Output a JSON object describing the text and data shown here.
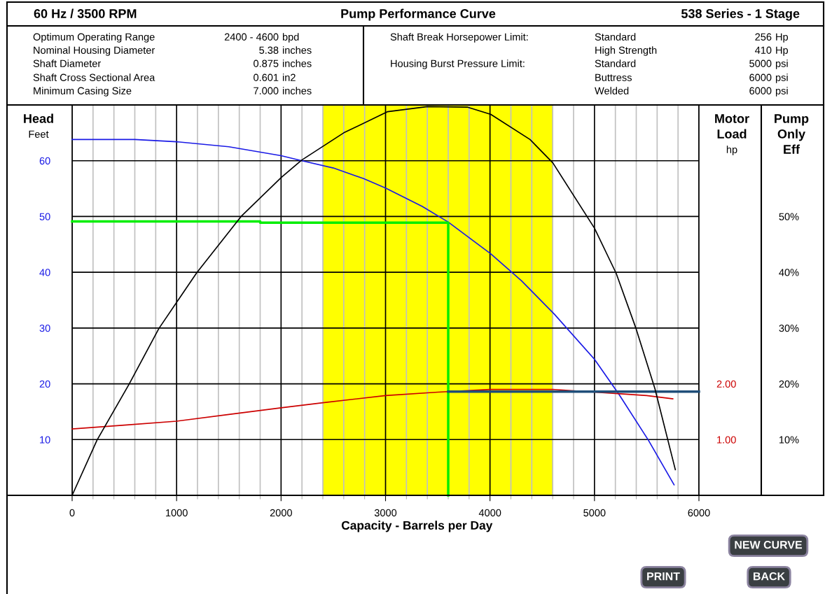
{
  "chart_data": {
    "type": "line",
    "title": "Pump Performance Curve",
    "subtitle": "538 Series - 1 Stage",
    "xlabel": "Capacity - Barrels per Day",
    "ylabel": "Head\nFeet",
    "y2label": "Motor\nLoad\nhp",
    "y3label": "Pump\nOnly\nEff",
    "annotations": [
      "60 Hz / 3500 RPM",
      "Optimum Operating Range",
      "Nominal Housing Diameter",
      "Shaft Diameter",
      "Shaft Cross Sectional Area",
      "Minimum Casing Size",
      "2400 - 4600",
      "5.38",
      "0.875",
      "0.601",
      "7.000",
      "bpd",
      "inches",
      "inches",
      "in2",
      "inches",
      "Shaft Break Horsepower Limit:",
      "Housing Burst Pressure Limit:",
      "Standard",
      "High Strength",
      "Standard",
      "Buttress",
      "Welded",
      "256",
      "410",
      "5000",
      "6000",
      "6000",
      "Hp",
      "Hp",
      "psi",
      "psi",
      "psi",
      "NEW CURVE",
      "PRINT",
      "BACK"
    ],
    "xlim": [
      0,
      6000
    ],
    "xticks": [
      0,
      {
        "value": 200,
        "label": null
      },
      {
        "value": 400,
        "label": null
      },
      {
        "value": 600,
        "label": null
      },
      {
        "value": 800,
        "label": null
      },
      1000,
      {
        "value": 1200,
        "label": null
      },
      {
        "value": 1400,
        "label": null
      },
      {
        "value": 1600,
        "label": null
      },
      {
        "value": 1800,
        "label": null
      },
      2000,
      {
        "value": 2200,
        "label": null
      },
      {
        "value": 2400,
        "label": null
      },
      {
        "value": 2600,
        "label": null
      },
      {
        "value": 2800,
        "label": null
      },
      3000,
      {
        "value": 3200,
        "label": null
      },
      {
        "value": 3400,
        "label": null
      },
      {
        "value": 3600,
        "label": null
      },
      {
        "value": 3800,
        "label": null
      },
      4000,
      {
        "value": 4200,
        "label": null
      },
      {
        "value": 4400,
        "label": null
      },
      {
        "value": 4600,
        "label": null
      },
      {
        "value": 4800,
        "label": null
      },
      5000,
      {
        "value": 5200,
        "label": null
      },
      {
        "value": 5400,
        "label": null
      },
      {
        "value": 5600,
        "label": null
      },
      {
        "value": 5800,
        "label": null
      },
      6000
    ],
    "ylim": [
      0,
      70
    ],
    "yticks": [
      10,
      20,
      30,
      40,
      50,
      60
    ],
    "y2lim": [
      0,
      7
    ],
    "y2ticks": [
      {
        "value": 1,
        "label": "1.00"
      },
      {
        "value": 2,
        "label": "2.00"
      }
    ],
    "y3lim": [
      0,
      70
    ],
    "y3ticks": [
      {
        "value": 10,
        "label": "10%"
      },
      {
        "value": 20,
        "label": "20%"
      },
      {
        "value": 30,
        "label": "30%"
      },
      {
        "value": 40,
        "label": "40%"
      },
      {
        "value": 50,
        "label": "50%"
      }
    ],
    "grid": true,
    "line_style": "solid",
    "marker": "none",
    "bands": [
      {
        "axis": "x",
        "from": 2400,
        "to": 4600,
        "color": "#ffff00"
      }
    ],
    "series": [
      {
        "color": "#1a1ae6",
        "x": [
          0,
          600,
          1000,
          1500,
          2000,
          2200,
          2500,
          2790,
          3000,
          3351,
          3600,
          4008,
          4300,
          4615,
          5000,
          5235,
          5516,
          5762
        ],
        "values": [
          63.8,
          63.8,
          63.4,
          62.5,
          60.9,
          60,
          58.7,
          56.8,
          55.1,
          51.8,
          49,
          43.3,
          38.5,
          32.5,
          24.4,
          18.1,
          9.9,
          1.9
        ]
      },
      {
        "color": "#000000",
        "axis": "y3",
        "x": [
          0,
          238,
          547,
          830,
          1192,
          1617,
          2002,
          2197,
          2600,
          3021,
          3400,
          3787,
          4008,
          4383,
          4602,
          5000,
          5208,
          5398,
          5579,
          5774
        ],
        "values": [
          0,
          9.9,
          20,
          29.9,
          39.9,
          50,
          57,
          60.1,
          65,
          68.8,
          69.7,
          69.6,
          68.3,
          63.8,
          59.6,
          47.9,
          39.8,
          29.9,
          19.1,
          4.6
        ]
      },
      {
        "color": "#cc0000",
        "axis": "y2",
        "x": [
          0,
          500,
          1000,
          1500,
          2000,
          2400,
          3000,
          3500,
          4000,
          4600,
          5000,
          5250,
          5500,
          5750
        ],
        "values": [
          1.19,
          1.26,
          1.33,
          1.45,
          1.57,
          1.66,
          1.79,
          1.85,
          1.9,
          1.9,
          1.85,
          1.82,
          1.79,
          1.73
        ]
      },
      {
        "color": "#00ee00",
        "x": [
          0,
          1800,
          1800,
          3600,
          3600
        ],
        "values": [
          49.1,
          49.1,
          48.9,
          48.9,
          0
        ]
      },
      {
        "color": "#1f4e79",
        "axis": "y2",
        "x": [
          3600,
          6000
        ],
        "values": [
          1.86,
          1.86
        ]
      }
    ]
  }
}
